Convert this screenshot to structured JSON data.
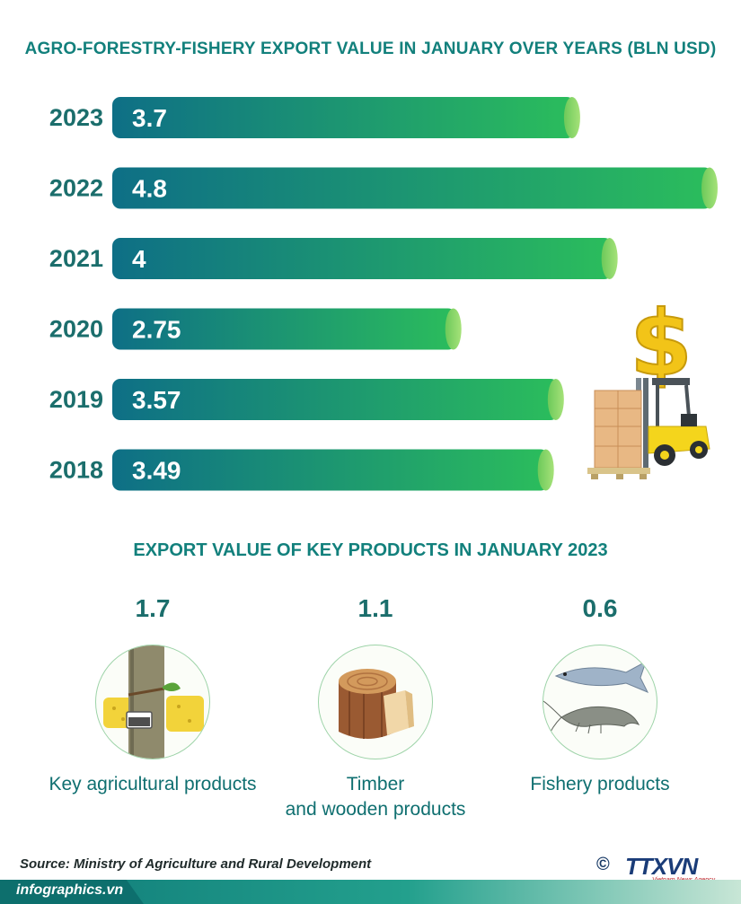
{
  "title": "AGRO-FORESTRY-FISHERY EXPORT VALUE IN JANUARY OVER YEARS  (BLN USD)",
  "chart_data": {
    "type": "bar",
    "orientation": "horizontal",
    "title": "AGRO-FORESTRY-FISHERY EXPORT VALUE IN JANUARY OVER YEARS  (BLN USD)",
    "unit": "BLN USD",
    "categories": [
      "2023",
      "2022",
      "2021",
      "2020",
      "2019",
      "2018"
    ],
    "values": [
      3.7,
      4.8,
      4,
      2.75,
      3.57,
      3.49
    ],
    "value_labels": [
      "3.7",
      "4.8",
      "4",
      "2.75",
      "3.57",
      "3.49"
    ],
    "xlim": [
      0,
      4.8
    ],
    "grid": false,
    "legend": "none"
  },
  "products_section": {
    "title": "EXPORT VALUE OF KEY PRODUCTS IN JANUARY 2023",
    "items": [
      {
        "value": "1.7",
        "label": "Key agricultural products",
        "icon": "rubber-latex-icon"
      },
      {
        "value": "1.1",
        "label": "Timber and wooden products",
        "label_line1": "Timber",
        "label_line2": "and wooden products",
        "icon": "wood-log-icon"
      },
      {
        "value": "0.6",
        "label": "Fishery products",
        "icon": "fish-shrimp-icon"
      }
    ]
  },
  "illustration": {
    "icon": "dollar-forklift-icon"
  },
  "footer": {
    "source": "Source: Ministry of Agriculture and Rural Development",
    "website": "infographics.vn",
    "logo_text": "TTXVN",
    "logo_symbol": "©",
    "logo_subtitle": "Vietnam News Agency"
  },
  "colors": {
    "bar_start": "#0e6f86",
    "bar_end": "#2bbd5c",
    "bar_cap": "#8fd86a",
    "year_label": "#1b6e6c",
    "title": "#12807c"
  }
}
